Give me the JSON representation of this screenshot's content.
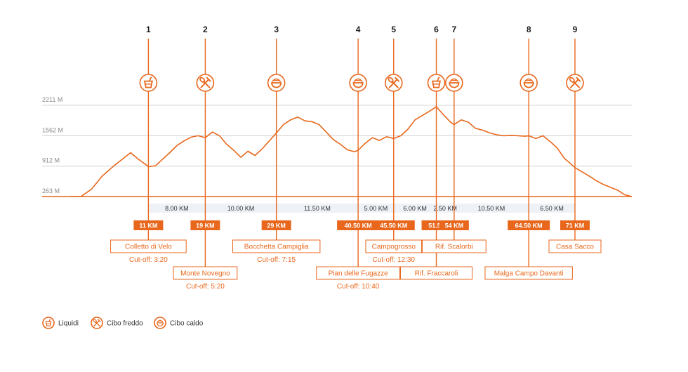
{
  "colors": {
    "accent": "#e8671c",
    "grid": "#c8c8c8",
    "band": "#eef1f6",
    "text": "#1a1a1a",
    "axis_label": "#8a8a8a"
  },
  "chart_data": {
    "type": "area",
    "title": "",
    "xlabel": "",
    "ylabel": "",
    "x_unit": "KM",
    "y_unit": "M",
    "xlim": [
      0,
      79
    ],
    "ylim": [
      263,
      2211
    ],
    "y_ticks": [
      "2211 M",
      "1562 M",
      "912 M",
      "263 M"
    ],
    "y_tick_values": [
      2211,
      1562,
      912,
      263
    ],
    "grid": true,
    "elevation_profile": {
      "x": [
        0,
        1.5,
        3,
        4.5,
        6,
        7.5,
        8.5,
        9.5,
        10.5,
        11,
        12,
        13,
        14,
        15,
        16,
        17,
        18,
        19,
        20,
        21,
        22,
        23,
        24,
        25,
        26,
        27,
        28,
        29,
        30,
        31,
        32,
        33,
        34,
        35,
        36,
        37,
        38,
        39,
        40,
        40.5,
        41.5,
        42.5,
        43.5,
        44.5,
        45.5,
        46.5,
        47.5,
        48.5,
        49.5,
        50.5,
        51.5,
        52.5,
        53.5,
        54,
        55,
        56,
        57,
        58,
        59,
        60,
        61,
        62,
        63,
        64,
        64.5,
        65.5,
        66.5,
        67.5,
        68.5,
        69.5,
        70.5,
        71,
        72,
        73,
        74,
        75,
        76,
        77,
        78,
        79
      ],
      "y": [
        263,
        263,
        420,
        700,
        900,
        1080,
        1200,
        1070,
        960,
        900,
        920,
        1060,
        1200,
        1350,
        1450,
        1530,
        1560,
        1520,
        1640,
        1560,
        1380,
        1250,
        1100,
        1230,
        1140,
        1280,
        1450,
        1620,
        1800,
        1900,
        1960,
        1880,
        1860,
        1800,
        1640,
        1480,
        1380,
        1260,
        1220,
        1250,
        1400,
        1520,
        1460,
        1540,
        1500,
        1560,
        1700,
        1900,
        1990,
        2080,
        2180,
        2010,
        1850,
        1800,
        1900,
        1850,
        1720,
        1680,
        1620,
        1580,
        1560,
        1570,
        1560,
        1550,
        1560,
        1500,
        1560,
        1440,
        1300,
        1080,
        950,
        880,
        790,
        700,
        600,
        520,
        460,
        400,
        300,
        263
      ]
    },
    "stations": [
      {
        "num": "1",
        "km": 11,
        "km_label": "11 KM",
        "name": "Colletto di Velo",
        "cutoff": "Cut-off: 3:20",
        "service": "liquidi",
        "row": 0
      },
      {
        "num": "2",
        "km": 19,
        "km_label": "19 KM",
        "name": "Monte Novegno",
        "cutoff": "Cut-off: 5:20",
        "service": "cibo-freddo",
        "row": 1
      },
      {
        "num": "3",
        "km": 29,
        "km_label": "29 KM",
        "name": "Bocchetta Campiglia",
        "cutoff": "Cut-off: 7:15",
        "service": "cibo-caldo",
        "row": 0
      },
      {
        "num": "4",
        "km": 40.5,
        "km_label": "40.50 KM",
        "name": "Pian delle Fugazze",
        "cutoff": "Cut-off: 10:40",
        "service": "cibo-caldo",
        "row": 1
      },
      {
        "num": "5",
        "km": 45.5,
        "km_label": "45.50 KM",
        "name": "Campogrosso",
        "cutoff": "Cut-off: 12:30",
        "service": "cibo-freddo",
        "row": 0
      },
      {
        "num": "6",
        "km": 51.5,
        "km_label": "51.50",
        "name": "Rif. Fraccaroli",
        "cutoff": "",
        "service": "liquidi",
        "row": 1
      },
      {
        "num": "7",
        "km": 54,
        "km_label": "54 KM",
        "name": "Rif. Scalorbi",
        "cutoff": "",
        "service": "cibo-caldo",
        "row": 0
      },
      {
        "num": "8",
        "km": 64.5,
        "km_label": "64.50 KM",
        "name": "Malga Campo Davanti",
        "cutoff": "",
        "service": "cibo-caldo",
        "row": 1
      },
      {
        "num": "9",
        "km": 71,
        "km_label": "71 KM",
        "name": "Casa Sacco",
        "cutoff": "",
        "service": "cibo-freddo",
        "row": 0
      }
    ],
    "segments": [
      {
        "label": "8.00 KM",
        "from": 11,
        "to": 19
      },
      {
        "label": "10.00 KM",
        "from": 19,
        "to": 29
      },
      {
        "label": "11.50 KM",
        "from": 29,
        "to": 40.5
      },
      {
        "label": "5.00 KM",
        "from": 40.5,
        "to": 45.5
      },
      {
        "label": "6.00 KM",
        "from": 45.5,
        "to": 51.5
      },
      {
        "label": "2.50 KM",
        "from": 51.5,
        "to": 54
      },
      {
        "label": "10.50 KM",
        "from": 54,
        "to": 64.5
      },
      {
        "label": "6.50 KM",
        "from": 64.5,
        "to": 71
      }
    ],
    "legend": [
      {
        "icon": "liquidi",
        "label": "Liquidi"
      },
      {
        "icon": "cibo-freddo",
        "label": "Cibo freddo"
      },
      {
        "icon": "cibo-caldo",
        "label": "Cibo caldo"
      }
    ],
    "legend_position": "bottom-left"
  }
}
